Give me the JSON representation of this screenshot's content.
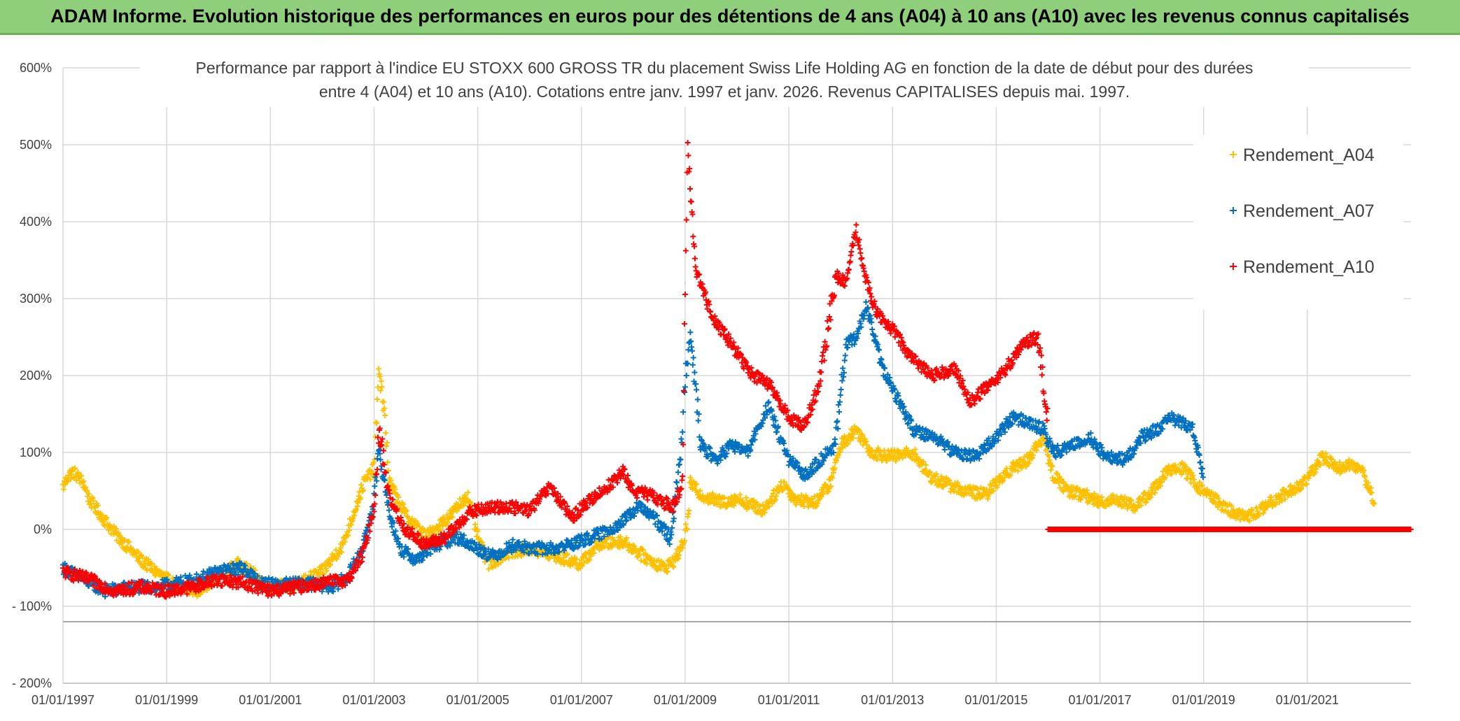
{
  "header": {
    "title": "ADAM Informe. Evolution historique des performances en euros pour des détentions de 4 ans (A04) à 10 ans (A10) avec les revenus connus capitalisés"
  },
  "chart_data": {
    "type": "scatter",
    "title_line1": "Performance par rapport à l'indice EU STOXX 600 GROSS TR  du placement Swiss Life Holding AG en fonction de la date de début pour des durées",
    "title_line2": "entre 4 (A04) et 10 ans (A10). Cotations entre janv. 1997 et janv. 2026. Revenus CAPITALISES depuis mai. 1997.",
    "xlabel": "",
    "ylabel": "",
    "x_range": [
      1997.0,
      2023.0
    ],
    "ylim": [
      -200,
      600
    ],
    "y_ticks": [
      -200,
      -100,
      0,
      100,
      200,
      300,
      400,
      500,
      600
    ],
    "y_tick_labels": [
      "- 200%",
      "- 100%",
      "0%",
      "100%",
      "200%",
      "300%",
      "400%",
      "500%",
      "600%"
    ],
    "x_ticks": [
      1997,
      1999,
      2001,
      2003,
      2005,
      2007,
      2009,
      2011,
      2013,
      2015,
      2017,
      2019,
      2021
    ],
    "x_tick_labels": [
      "01/01/1997",
      "01/01/1999",
      "01/01/2001",
      "01/01/2003",
      "01/01/2005",
      "01/01/2007",
      "01/01/2009",
      "01/01/2011",
      "01/01/2013",
      "01/01/2015",
      "01/01/2017",
      "01/01/2019",
      "01/01/2021"
    ],
    "reference_line_y": -120,
    "legend_position": "top-right",
    "marker": "+",
    "series": [
      {
        "name": "Rendement_A04",
        "color": "#FFC000",
        "x": [
          1997.0,
          1997.1,
          1997.2,
          1997.4,
          1997.5,
          1997.6,
          1998.0,
          1998.5,
          1998.8,
          1999.0,
          1999.3,
          1999.6,
          1999.8,
          2000.0,
          2000.4,
          2000.6,
          2001.0,
          2001.5,
          2002.0,
          2002.4,
          2002.8,
          2003.0,
          2003.1,
          2003.2,
          2003.3,
          2003.6,
          2004.0,
          2004.5,
          2004.8,
          2005.0,
          2005.2,
          2005.6,
          2006.0,
          2006.5,
          2007.0,
          2007.3,
          2007.8,
          2008.2,
          2008.6,
          2008.8,
          2008.95,
          2009.05,
          2009.1,
          2009.3,
          2009.7,
          2010.0,
          2010.5,
          2010.9,
          2011.1,
          2011.5,
          2011.8,
          2012.0,
          2012.3,
          2012.6,
          2013.0,
          2013.4,
          2013.7,
          2014.0,
          2014.4,
          2014.8,
          2015.2,
          2015.6,
          2015.9,
          2016.1,
          2016.4,
          2016.7,
          2017.0,
          2017.3,
          2017.7,
          2018.0,
          2018.3,
          2018.6,
          2018.9,
          2019.2,
          2019.5,
          2019.8,
          2020.1,
          2020.4,
          2020.8,
          2021.0,
          2021.3,
          2021.6,
          2021.9,
          2022.1,
          2022.3
        ],
        "y": [
          55,
          70,
          75,
          60,
          40,
          30,
          -5,
          -40,
          -55,
          -65,
          -78,
          -80,
          -70,
          -60,
          -45,
          -55,
          -75,
          -72,
          -55,
          -20,
          60,
          80,
          210,
          150,
          60,
          20,
          -10,
          20,
          45,
          -10,
          -45,
          -30,
          -25,
          -35,
          -45,
          -20,
          -15,
          -35,
          -50,
          -40,
          -20,
          10,
          60,
          45,
          35,
          40,
          25,
          60,
          40,
          35,
          60,
          110,
          130,
          100,
          95,
          100,
          70,
          60,
          50,
          45,
          75,
          90,
          120,
          70,
          50,
          45,
          35,
          40,
          30,
          50,
          75,
          80,
          55,
          40,
          25,
          15,
          25,
          40,
          55,
          65,
          95,
          80,
          85,
          70,
          35
        ]
      },
      {
        "name": "Rendement_A07",
        "color": "#0070C0",
        "x": [
          1997.0,
          1997.4,
          1997.8,
          1998.3,
          1998.8,
          1999.2,
          1999.6,
          2000.0,
          2000.5,
          2000.8,
          2001.2,
          2001.7,
          2002.2,
          2002.5,
          2002.8,
          2003.0,
          2003.1,
          2003.3,
          2003.5,
          2003.8,
          2004.2,
          2004.6,
          2005.0,
          2005.3,
          2005.7,
          2006.0,
          2006.5,
          2007.0,
          2007.4,
          2007.8,
          2008.1,
          2008.4,
          2008.7,
          2008.9,
          2009.0,
          2009.1,
          2009.3,
          2009.6,
          2009.9,
          2010.2,
          2010.6,
          2011.0,
          2011.3,
          2011.6,
          2011.9,
          2012.1,
          2012.3,
          2012.5,
          2012.8,
          2013.1,
          2013.4,
          2013.8,
          2014.2,
          2014.6,
          2015.0,
          2015.3,
          2015.6,
          2015.9,
          2016.1,
          2016.5,
          2016.8,
          2017.1,
          2017.5,
          2017.8,
          2018.1,
          2018.4,
          2018.8,
          2019.0
        ],
        "y": [
          -50,
          -65,
          -80,
          -75,
          -75,
          -70,
          -65,
          -55,
          -50,
          -70,
          -72,
          -70,
          -75,
          -60,
          -20,
          40,
          100,
          20,
          -25,
          -40,
          -20,
          -10,
          -25,
          -35,
          -20,
          -25,
          -25,
          -15,
          -5,
          10,
          30,
          15,
          -10,
          80,
          200,
          260,
          110,
          90,
          110,
          100,
          160,
          90,
          70,
          90,
          110,
          240,
          250,
          290,
          210,
          170,
          130,
          120,
          100,
          95,
          120,
          145,
          140,
          130,
          100,
          110,
          120,
          95,
          90,
          120,
          130,
          145,
          130,
          65
        ]
      },
      {
        "name": "Rendement_A10",
        "color": "#FF0000",
        "x": [
          1997.0,
          1997.5,
          1998.0,
          1998.5,
          1999.0,
          1999.5,
          2000.0,
          2000.5,
          2001.0,
          2001.5,
          2002.0,
          2002.5,
          2002.8,
          2003.0,
          2003.1,
          2003.3,
          2003.6,
          2004.0,
          2004.4,
          2004.8,
          2005.0,
          2005.5,
          2006.0,
          2006.4,
          2006.8,
          2007.2,
          2007.5,
          2007.8,
          2008.0,
          2008.3,
          2008.6,
          2008.8,
          2008.95,
          2009.0,
          2009.05,
          2009.2,
          2009.5,
          2009.9,
          2010.3,
          2010.6,
          2011.0,
          2011.3,
          2011.6,
          2011.9,
          2012.1,
          2012.3,
          2012.5,
          2012.7,
          2013.0,
          2013.4,
          2013.8,
          2014.2,
          2014.5,
          2014.9,
          2015.2,
          2015.5,
          2015.8,
          2016.0
        ],
        "y": [
          -55,
          -65,
          -80,
          -75,
          -80,
          -75,
          -65,
          -70,
          -80,
          -75,
          -70,
          -65,
          -30,
          30,
          130,
          40,
          0,
          -20,
          -10,
          20,
          25,
          30,
          25,
          55,
          15,
          40,
          55,
          75,
          50,
          45,
          35,
          30,
          60,
          320,
          500,
          340,
          280,
          240,
          200,
          190,
          145,
          135,
          190,
          330,
          320,
          390,
          320,
          280,
          260,
          220,
          200,
          210,
          165,
          190,
          210,
          240,
          250,
          140
        ]
      },
      {
        "name": "Rendement_A10_zero",
        "color": "#FF0000",
        "x_start": 2016.0,
        "x_end": 2023.0,
        "y_value": 0,
        "legend": false
      }
    ]
  }
}
